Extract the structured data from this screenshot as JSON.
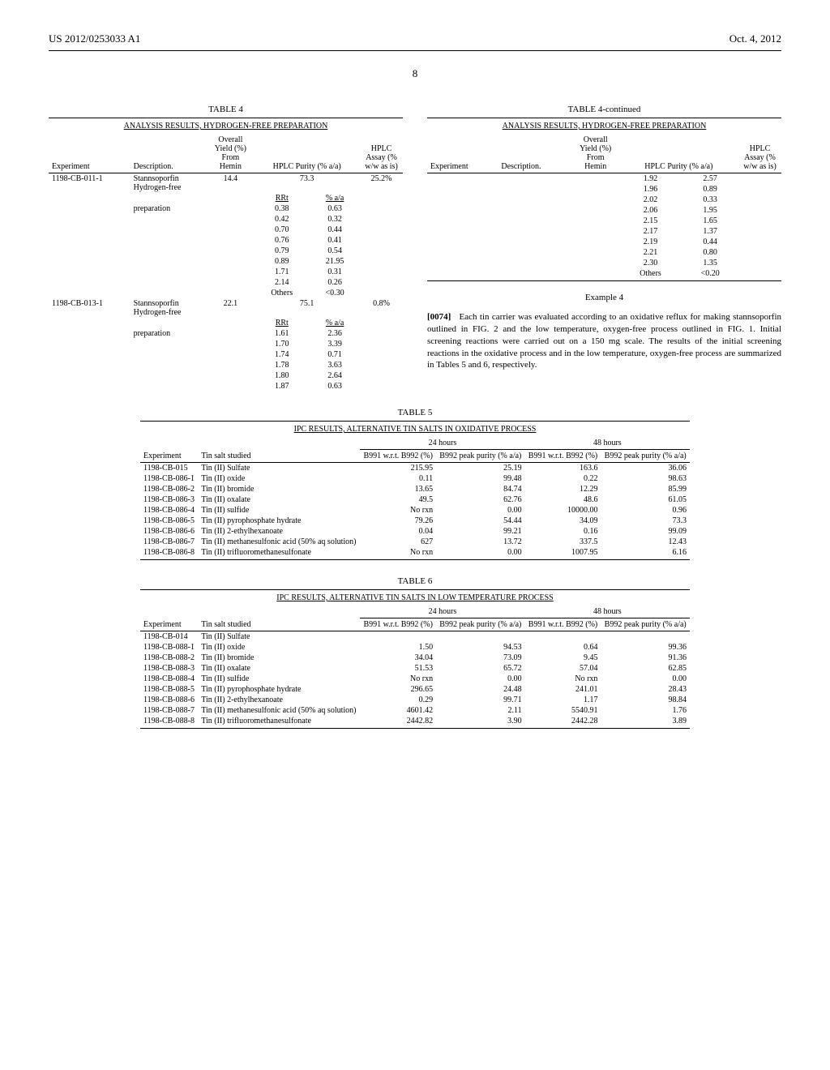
{
  "header": {
    "pub_number": "US 2012/0253033 A1",
    "pub_date": "Oct. 4, 2012",
    "page_number": "8"
  },
  "table4": {
    "title": "TABLE 4",
    "subtitle": "ANALYSIS RESULTS, HYDROGEN-FREE PREPARATION",
    "title_cont": "TABLE 4-continued",
    "headers": {
      "experiment": "Experiment",
      "description": "Description.",
      "overall_yield": "Overall Yield (%) From Hemin",
      "hplc_purity": "HPLC Purity (% a/a)",
      "hplc_assay": "HPLC Assay (% w/w as is)",
      "rrt": "RRt",
      "pct_aa": "% a/a"
    },
    "left_rows": [
      {
        "experiment": "1198-CB-011-1",
        "description": "Stannsoporfin Hydrogen-free preparation",
        "yield": "14.4",
        "purity_total": "73.3",
        "assay": "25.2%",
        "sub": [
          [
            "0.38",
            "0.63"
          ],
          [
            "0.42",
            "0.32"
          ],
          [
            "0.70",
            "0.44"
          ],
          [
            "0.76",
            "0.41"
          ],
          [
            "0.79",
            "0.54"
          ],
          [
            "0.89",
            "21.95"
          ],
          [
            "1.71",
            "0.31"
          ],
          [
            "2.14",
            "0.26"
          ],
          [
            "Others",
            "<0.30"
          ]
        ]
      },
      {
        "experiment": "1198-CB-013-1",
        "description": "Stannsoporfin Hydrogen-free preparation",
        "yield": "22.1",
        "purity_total": "75.1",
        "assay": "0.8%",
        "sub": [
          [
            "1.61",
            "2.36"
          ],
          [
            "1.70",
            "3.39"
          ],
          [
            "1.74",
            "0.71"
          ],
          [
            "1.78",
            "3.63"
          ],
          [
            "1.80",
            "2.64"
          ],
          [
            "1.87",
            "0.63"
          ]
        ]
      }
    ],
    "right_rows": [
      [
        "1.92",
        "2.57"
      ],
      [
        "1.96",
        "0.89"
      ],
      [
        "2.02",
        "0.33"
      ],
      [
        "2.06",
        "1.95"
      ],
      [
        "2.15",
        "1.65"
      ],
      [
        "2.17",
        "1.37"
      ],
      [
        "2.19",
        "0.44"
      ],
      [
        "2.21",
        "0.80"
      ],
      [
        "2.30",
        "1.35"
      ],
      [
        "Others",
        "<0.20"
      ]
    ]
  },
  "example4": {
    "heading": "Example 4",
    "para_num": "[0074]",
    "text": "Each tin carrier was evaluated according to an oxidative reflux for making stannsoporfin outlined in FIG. 2 and the low temperature, oxygen-free process outlined in FIG. 1. Initial screening reactions were carried out on a 150 mg scale. The results of the initial screening reactions in the oxidative process and in the low temperature, oxygen-free process are summarized in Tables 5 and 6, respectively."
  },
  "table5": {
    "title": "TABLE 5",
    "subtitle": "IPC RESULTS, ALTERNATIVE TIN SALTS IN OXIDATIVE PROCESS",
    "headers": {
      "experiment": "Experiment",
      "tin_salt": "Tin salt studied",
      "h24": "24 hours",
      "h48": "48 hours",
      "b991": "B991 w.r.t. B992 (%)",
      "b992": "B992 peak purity (% a/a)"
    },
    "rows": [
      [
        "1198-CB-015",
        "Tin (II) Sulfate",
        "215.95",
        "25.19",
        "163.6",
        "36.06"
      ],
      [
        "1198-CB-086-1",
        "Tin (II) oxide",
        "0.11",
        "99.48",
        "0.22",
        "98.63"
      ],
      [
        "1198-CB-086-2",
        "Tin (II) bromide",
        "13.65",
        "84.74",
        "12.29",
        "85.99"
      ],
      [
        "1198-CB-086-3",
        "Tin (II) oxalate",
        "49.5",
        "62.76",
        "48.6",
        "61.05"
      ],
      [
        "1198-CB-086-4",
        "Tin (II) sulfide",
        "No rxn",
        "0.00",
        "10000.00",
        "0.96"
      ],
      [
        "1198-CB-086-5",
        "Tin (II) pyrophosphate hydrate",
        "79.26",
        "54.44",
        "34.09",
        "73.3"
      ],
      [
        "1198-CB-086-6",
        "Tin (II) 2-ethylhexanoate",
        "0.04",
        "99.21",
        "0.16",
        "99.09"
      ],
      [
        "1198-CB-086-7",
        "Tin (II) methanesulfonic acid (50% aq solution)",
        "627",
        "13.72",
        "337.5",
        "12.43"
      ],
      [
        "1198-CB-086-8",
        "Tin (II) trifluoromethanesulfonate",
        "No rxn",
        "0.00",
        "1007.95",
        "6.16"
      ]
    ]
  },
  "table6": {
    "title": "TABLE 6",
    "subtitle": "IPC RESULTS, ALTERNATIVE TIN SALTS IN LOW TEMPERATURE PROCESS",
    "headers": {
      "experiment": "Experiment",
      "tin_salt": "Tin salt studied",
      "h24": "24 hours",
      "h48": "48 hours",
      "b991": "B991 w.r.t. B992 (%)",
      "b992": "B992 peak purity (% a/a)"
    },
    "rows": [
      [
        "1198-CB-014",
        "Tin (II) Sulfate",
        "",
        "",
        "",
        ""
      ],
      [
        "1198-CB-088-1",
        "Tin (II) oxide",
        "1.50",
        "94.53",
        "0.64",
        "99.36"
      ],
      [
        "1198-CB-088-2",
        "Tin (II) bromide",
        "34.04",
        "73.09",
        "9.45",
        "91.36"
      ],
      [
        "1198-CB-088-3",
        "Tin (II) oxalate",
        "51.53",
        "65.72",
        "57.04",
        "62.85"
      ],
      [
        "1198-CB-088-4",
        "Tin (II) sulfide",
        "No rxn",
        "0.00",
        "No rxn",
        "0.00"
      ],
      [
        "1198-CB-088-5",
        "Tin (II) pyrophosphate hydrate",
        "296.65",
        "24.48",
        "241.01",
        "28.43"
      ],
      [
        "1198-CB-088-6",
        "Tin (II) 2-ethylhexanoate",
        "0.29",
        "99.71",
        "1.17",
        "98.84"
      ],
      [
        "1198-CB-088-7",
        "Tin (II) methanesulfonic acid (50% aq solution)",
        "4601.42",
        "2.11",
        "5540.91",
        "1.76"
      ],
      [
        "1198-CB-088-8",
        "Tin (II) trifluoromethanesulfonate",
        "2442.82",
        "3.90",
        "2442.28",
        "3.89"
      ]
    ]
  }
}
